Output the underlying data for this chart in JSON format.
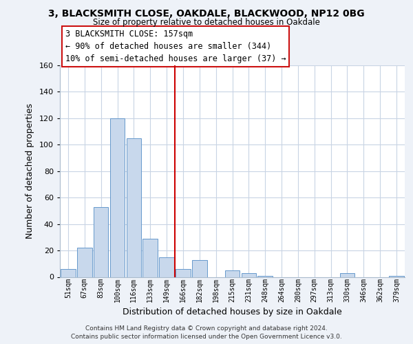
{
  "title1": "3, BLACKSMITH CLOSE, OAKDALE, BLACKWOOD, NP12 0BG",
  "title2": "Size of property relative to detached houses in Oakdale",
  "xlabel": "Distribution of detached houses by size in Oakdale",
  "ylabel": "Number of detached properties",
  "bar_labels": [
    "51sqm",
    "67sqm",
    "83sqm",
    "100sqm",
    "116sqm",
    "133sqm",
    "149sqm",
    "166sqm",
    "182sqm",
    "198sqm",
    "215sqm",
    "231sqm",
    "248sqm",
    "264sqm",
    "280sqm",
    "297sqm",
    "313sqm",
    "330sqm",
    "346sqm",
    "362sqm",
    "379sqm"
  ],
  "bar_values": [
    6,
    22,
    53,
    120,
    105,
    29,
    15,
    6,
    13,
    0,
    5,
    3,
    1,
    0,
    0,
    0,
    0,
    3,
    0,
    0,
    1
  ],
  "bar_color": "#c8d8ec",
  "bar_edge_color": "#6699cc",
  "vline_x": 6.5,
  "vline_color": "#cc0000",
  "annotation_title": "3 BLACKSMITH CLOSE: 157sqm",
  "annotation_line1": "← 90% of detached houses are smaller (344)",
  "annotation_line2": "10% of semi-detached houses are larger (37) →",
  "ylim": [
    0,
    160
  ],
  "yticks": [
    0,
    20,
    40,
    60,
    80,
    100,
    120,
    140,
    160
  ],
  "footer1": "Contains HM Land Registry data © Crown copyright and database right 2024.",
  "footer2": "Contains public sector information licensed under the Open Government Licence v3.0.",
  "bg_color": "#eef2f8",
  "plot_bg_color": "#ffffff",
  "grid_color": "#c8d4e4"
}
